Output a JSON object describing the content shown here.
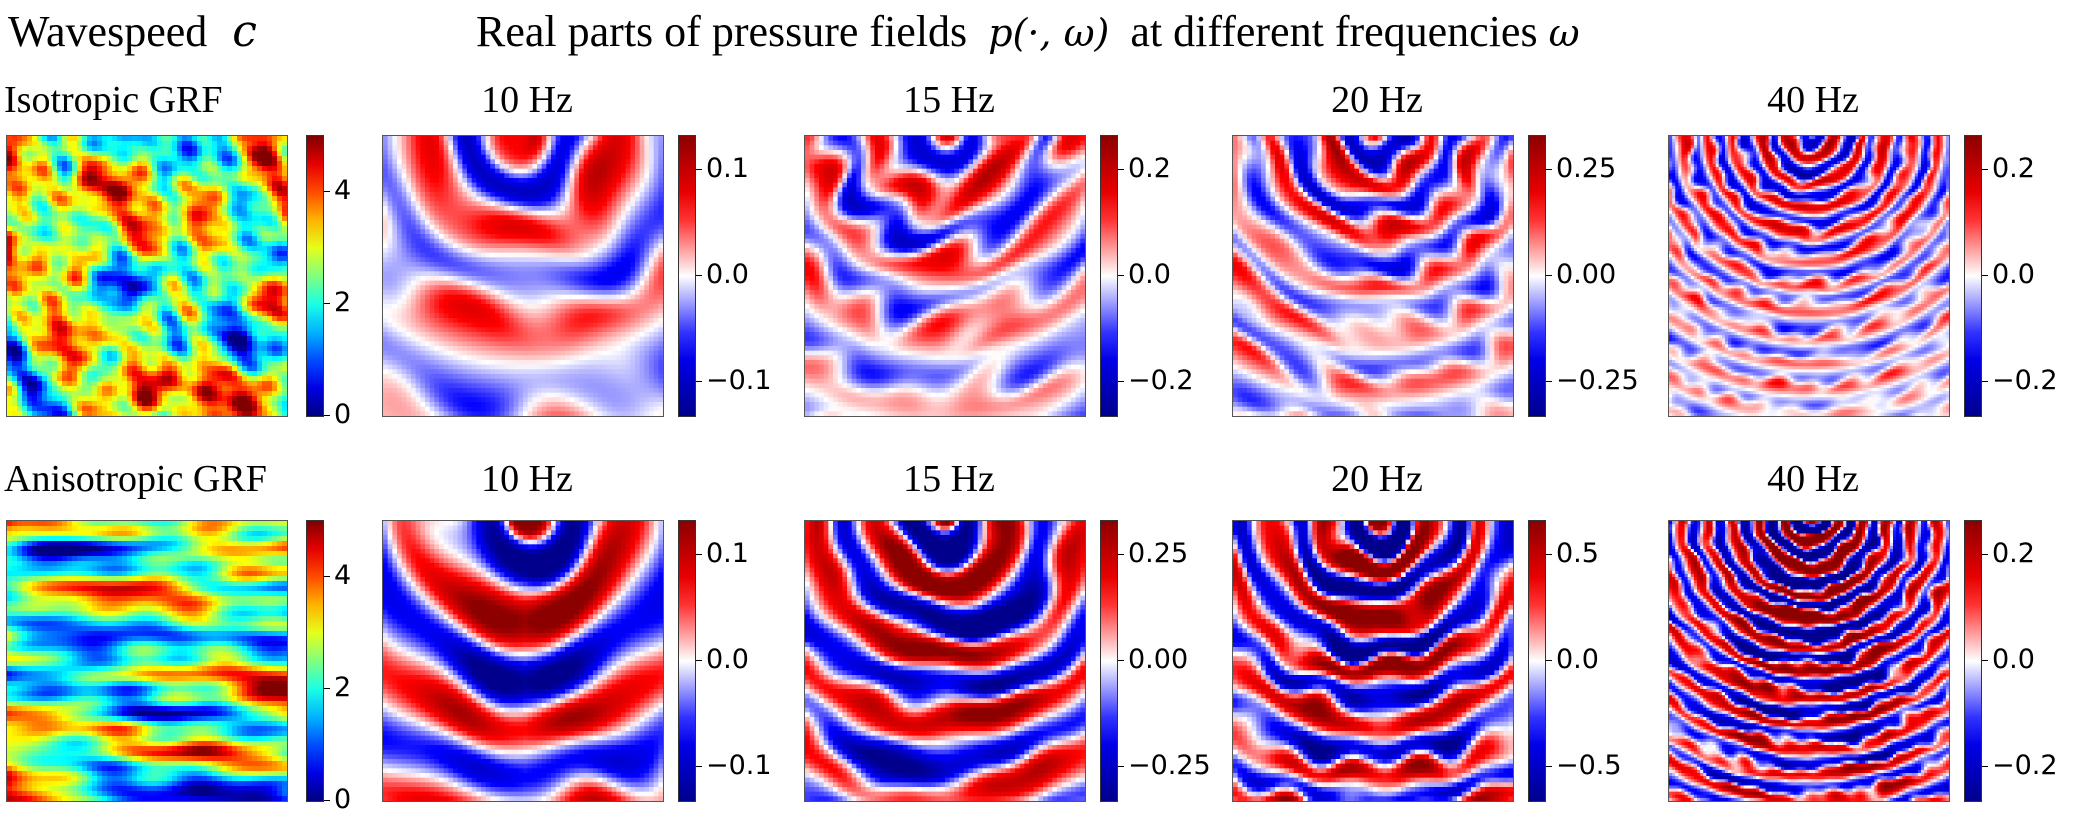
{
  "header": {
    "left_title": "Wavespeed",
    "left_symbol": "c",
    "right_title": "Real parts of pressure fields",
    "right_symbol": "p(·, ω)",
    "right_title_suffix": "at different frequencies",
    "right_suffix_symbol": "ω"
  },
  "rows": [
    {
      "label": "Isotropic GRF",
      "wavespeed": {
        "colormap": "jet",
        "ticks": [
          "4",
          "2",
          "0"
        ]
      },
      "panels": [
        {
          "title": "10 Hz",
          "ticks": [
            "0.1",
            "0.0",
            "−0.1"
          ]
        },
        {
          "title": "15 Hz",
          "ticks": [
            "0.2",
            "0.0",
            "−0.2"
          ]
        },
        {
          "title": "20 Hz",
          "ticks": [
            "0.25",
            "0.00",
            "−0.25"
          ]
        },
        {
          "title": "40 Hz",
          "ticks": [
            "0.2",
            "0.0",
            "−0.2"
          ]
        }
      ]
    },
    {
      "label": "Anisotropic GRF",
      "wavespeed": {
        "colormap": "jet",
        "ticks": [
          "4",
          "2",
          "0"
        ]
      },
      "panels": [
        {
          "title": "10 Hz",
          "ticks": [
            "0.1",
            "0.0",
            "−0.1"
          ]
        },
        {
          "title": "15 Hz",
          "ticks": [
            "0.25",
            "0.00",
            "−0.25"
          ]
        },
        {
          "title": "20 Hz",
          "ticks": [
            "0.5",
            "0.0",
            "−0.5"
          ]
        },
        {
          "title": "40 Hz",
          "ticks": [
            "0.2",
            "0.0",
            "−0.2"
          ]
        }
      ]
    }
  ],
  "chart_data": {
    "type": "heatmap",
    "colormaps": {
      "wavespeed": "jet",
      "pressure": "seismic"
    },
    "colors": {
      "red": "#8b0000",
      "blue": "#00008b",
      "white": "#ffffff"
    },
    "frequencies": [
      10,
      15,
      20,
      40
    ]
  }
}
